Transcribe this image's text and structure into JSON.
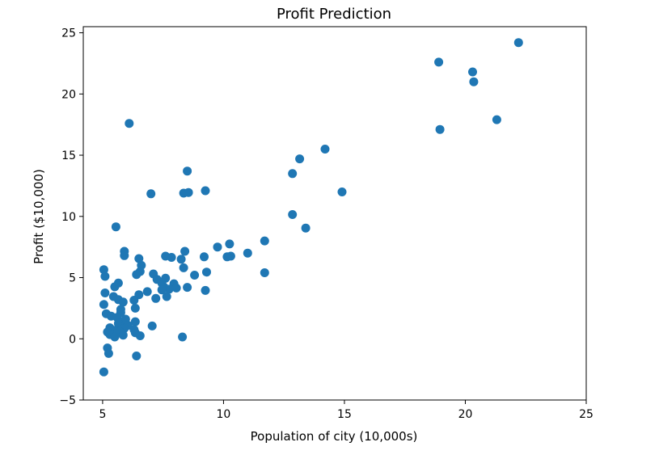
{
  "chart_data": {
    "type": "scatter",
    "title": "Profit Prediction",
    "xlabel": "Population of city (10,000s)",
    "ylabel": "Profit ($10,000)",
    "xlim": [
      4.2,
      25
    ],
    "ylim": [
      -5,
      25.5
    ],
    "xticks": [
      5,
      10,
      15,
      20,
      25
    ],
    "yticks": [
      -5,
      0,
      5,
      10,
      15,
      20,
      25
    ],
    "xtick_labels": [
      "5",
      "10",
      "15",
      "20",
      "25"
    ],
    "ytick_labels": [
      "−5",
      "0",
      "5",
      "10",
      "15",
      "20",
      "25"
    ],
    "grid": false,
    "marker_color": "#1f77b4",
    "points": [
      [
        22.2,
        24.2
      ],
      [
        18.9,
        22.6
      ],
      [
        20.3,
        21.8
      ],
      [
        20.35,
        21.0
      ],
      [
        21.3,
        17.9
      ],
      [
        18.95,
        17.1
      ],
      [
        6.1,
        17.6
      ],
      [
        14.2,
        15.5
      ],
      [
        13.15,
        14.7
      ],
      [
        12.85,
        13.5
      ],
      [
        8.5,
        13.7
      ],
      [
        14.9,
        12.0
      ],
      [
        9.25,
        12.1
      ],
      [
        8.35,
        11.9
      ],
      [
        8.55,
        11.95
      ],
      [
        7.0,
        11.85
      ],
      [
        12.85,
        10.15
      ],
      [
        13.4,
        9.05
      ],
      [
        5.55,
        9.15
      ],
      [
        11.7,
        8.0
      ],
      [
        10.25,
        7.75
      ],
      [
        9.75,
        7.5
      ],
      [
        11.0,
        7.0
      ],
      [
        10.3,
        6.75
      ],
      [
        10.15,
        6.7
      ],
      [
        9.2,
        6.7
      ],
      [
        8.4,
        7.15
      ],
      [
        5.9,
        7.15
      ],
      [
        5.9,
        6.8
      ],
      [
        6.5,
        6.55
      ],
      [
        7.6,
        6.75
      ],
      [
        7.85,
        6.65
      ],
      [
        8.25,
        6.5
      ],
      [
        6.6,
        6.0
      ],
      [
        8.35,
        5.8
      ],
      [
        5.05,
        5.65
      ],
      [
        6.55,
        5.5
      ],
      [
        9.3,
        5.45
      ],
      [
        11.7,
        5.4
      ],
      [
        7.1,
        5.3
      ],
      [
        6.4,
        5.25
      ],
      [
        8.8,
        5.2
      ],
      [
        5.1,
        5.1
      ],
      [
        7.6,
        4.95
      ],
      [
        7.25,
        4.85
      ],
      [
        7.45,
        4.55
      ],
      [
        7.95,
        4.5
      ],
      [
        5.65,
        4.55
      ],
      [
        5.5,
        4.25
      ],
      [
        8.5,
        4.2
      ],
      [
        8.05,
        4.15
      ],
      [
        7.55,
        4.2
      ],
      [
        7.75,
        4.05
      ],
      [
        7.45,
        4.0
      ],
      [
        9.25,
        3.95
      ],
      [
        6.85,
        3.85
      ],
      [
        5.1,
        3.75
      ],
      [
        6.5,
        3.6
      ],
      [
        5.45,
        3.45
      ],
      [
        7.65,
        3.45
      ],
      [
        7.2,
        3.3
      ],
      [
        5.65,
        3.2
      ],
      [
        6.3,
        3.15
      ],
      [
        5.85,
        3.0
      ],
      [
        5.05,
        2.8
      ],
      [
        6.35,
        2.5
      ],
      [
        5.75,
        2.4
      ],
      [
        5.75,
        2.15
      ],
      [
        5.15,
        2.05
      ],
      [
        5.35,
        1.85
      ],
      [
        5.6,
        1.75
      ],
      [
        5.95,
        1.6
      ],
      [
        5.9,
        1.4
      ],
      [
        6.35,
        1.4
      ],
      [
        5.65,
        1.25
      ],
      [
        6.05,
        1.1
      ],
      [
        7.05,
        1.05
      ],
      [
        5.7,
        1.0
      ],
      [
        5.3,
        0.9
      ],
      [
        5.9,
        0.85
      ],
      [
        6.3,
        0.75
      ],
      [
        5.5,
        0.7
      ],
      [
        5.7,
        0.6
      ],
      [
        5.2,
        0.55
      ],
      [
        6.35,
        0.5
      ],
      [
        5.55,
        0.4
      ],
      [
        5.3,
        0.35
      ],
      [
        5.85,
        0.3
      ],
      [
        6.55,
        0.25
      ],
      [
        5.5,
        0.15
      ],
      [
        8.3,
        0.15
      ],
      [
        5.2,
        -0.75
      ],
      [
        5.25,
        -1.2
      ],
      [
        6.4,
        -1.4
      ],
      [
        5.05,
        -2.7
      ]
    ]
  }
}
